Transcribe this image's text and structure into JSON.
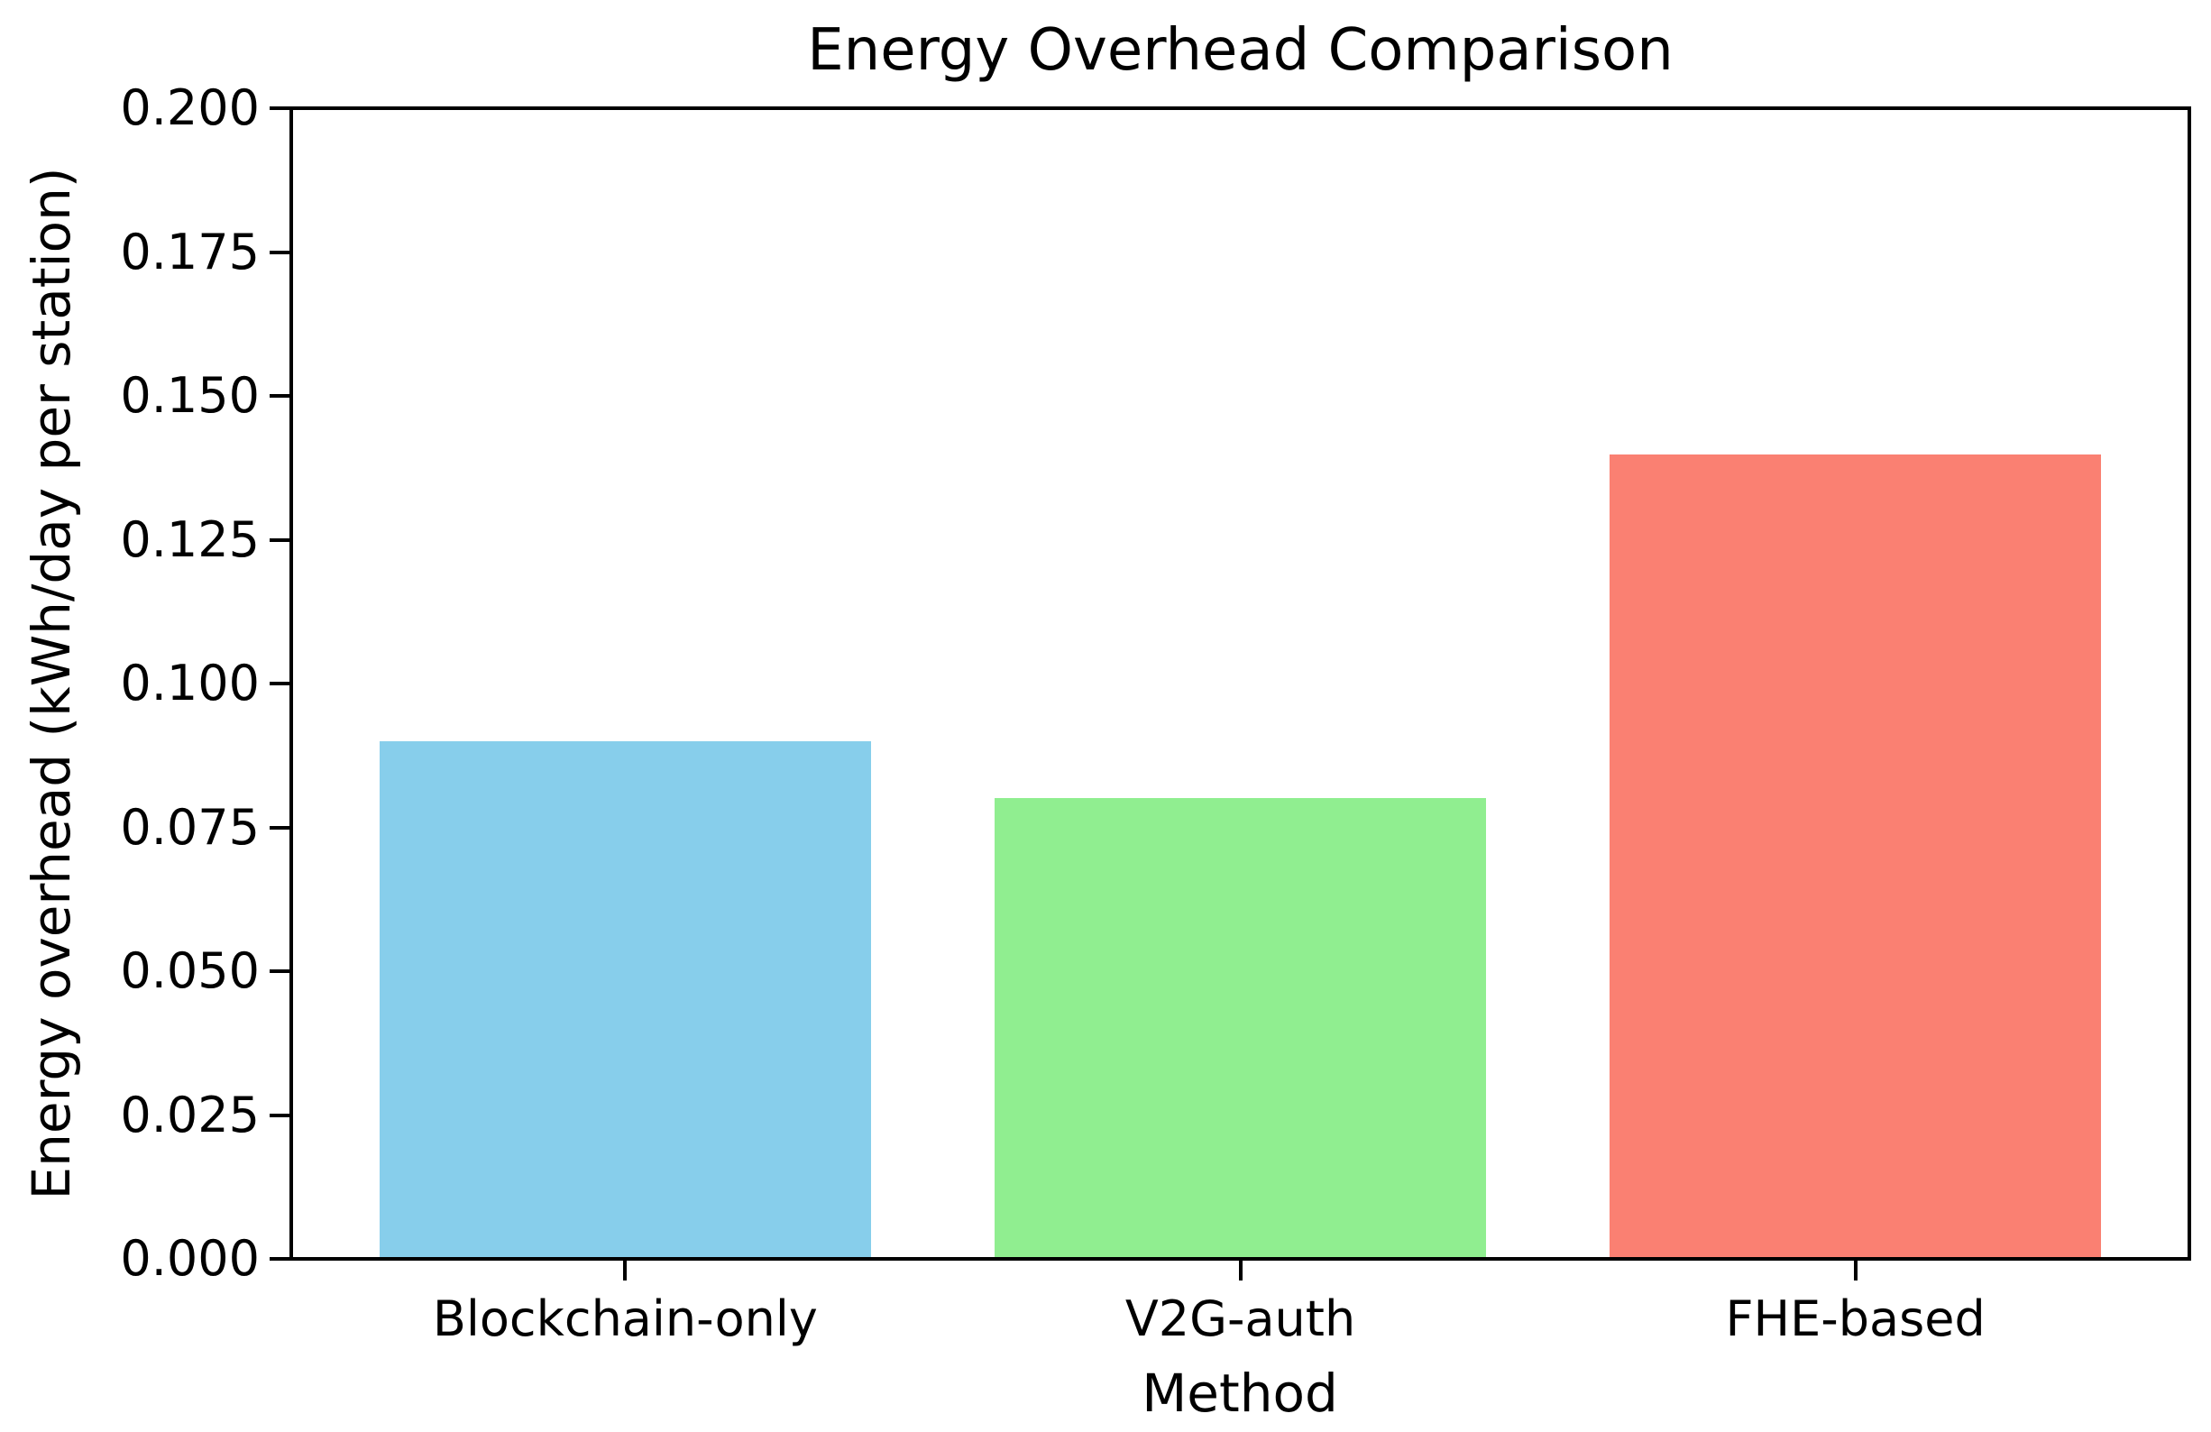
{
  "chart_data": {
    "type": "bar",
    "title": "Energy Overhead Comparison",
    "xlabel": "Method",
    "ylabel": "Energy overhead (kWh/day per station)",
    "categories": [
      "Blockchain-only",
      "V2G-auth",
      "FHE-based"
    ],
    "values": [
      0.09,
      0.08,
      0.14
    ],
    "bar_colors": [
      "#87CEEB",
      "#90EE90",
      "#FA8072"
    ],
    "ylim": [
      0.0,
      0.2
    ],
    "ytick_labels": [
      "0.000",
      "0.025",
      "0.050",
      "0.075",
      "0.100",
      "0.125",
      "0.150",
      "0.175",
      "0.200"
    ],
    "yticks": [
      0.0,
      0.025,
      0.05,
      0.075,
      0.1,
      0.125,
      0.15,
      0.175,
      0.2
    ],
    "bar_width_fraction": 0.8,
    "grid": false,
    "legend": "none",
    "text_color": "#000000",
    "background_color": "#ffffff"
  }
}
